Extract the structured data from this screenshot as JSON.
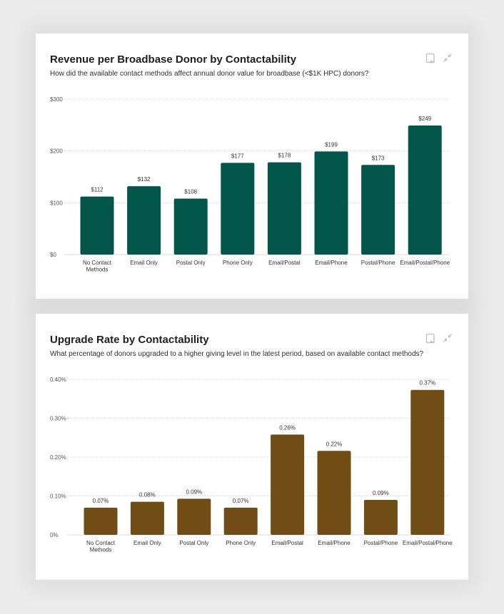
{
  "cards": [
    {
      "title": "Revenue per Broadbase Donor by Contactability",
      "subtitle": "How did the available contact methods affect annual donor value for broadbase (<$1K HPC) donors?",
      "icons": [
        "bookmark-add-icon",
        "collapse-icon"
      ]
    },
    {
      "title": "Upgrade Rate by Contactability",
      "subtitle": "What percentage of donors upgraded to a higher giving level in the latest period, based on available contact methods?",
      "icons": [
        "bookmark-add-icon",
        "collapse-icon"
      ]
    }
  ],
  "chart_data": [
    {
      "type": "bar",
      "title": "Revenue per Broadbase Donor by Contactability",
      "categories": [
        "No Contact Methods",
        "Email Only",
        "Postal Only",
        "Phone Only",
        "Email/Postal",
        "Email/Phone",
        "Postal/Phone",
        "Email/Postal/Phone"
      ],
      "category_lines": [
        [
          "No Contact",
          "Methods"
        ],
        [
          "Email Only"
        ],
        [
          "Postal Only"
        ],
        [
          "Phone Only"
        ],
        [
          "Email/Postal"
        ],
        [
          "Email/Phone"
        ],
        [
          "Postal/Phone"
        ],
        [
          "Email/Postal/Phone"
        ]
      ],
      "values": [
        112,
        132,
        108,
        177,
        178,
        199,
        173,
        249
      ],
      "value_labels": [
        "$112",
        "$132",
        "$108",
        "$177",
        "$178",
        "$199",
        "$173",
        "$249"
      ],
      "yticks": [
        0,
        100,
        200,
        300
      ],
      "ytick_labels": [
        "$0",
        "$100",
        "$200",
        "$300"
      ],
      "ylim": [
        0,
        300
      ],
      "xlabel": "",
      "ylabel": "",
      "grid": true,
      "color": "#02574a"
    },
    {
      "type": "bar",
      "title": "Upgrade Rate by Contactability",
      "categories": [
        "No Contact Methods",
        "Email Only",
        "Postal Only",
        "Phone Only",
        "Email/Postal",
        "Email/Phone",
        "Postal/Phone",
        "Email/Postal/Phone"
      ],
      "category_lines": [
        [
          "No Contact",
          "Methods"
        ],
        [
          "Email Only"
        ],
        [
          "Postal Only"
        ],
        [
          "Phone Only"
        ],
        [
          "Email/Postal"
        ],
        [
          "Email/Phone"
        ],
        [
          "Postal/Phone"
        ],
        [
          "Email/Postal/Phone"
        ]
      ],
      "values": [
        0.07,
        0.085,
        0.093,
        0.07,
        0.258,
        0.216,
        0.09,
        0.373
      ],
      "value_labels": [
        "0.07%",
        "0.08%",
        "0.09%",
        "0.07%",
        "0.26%",
        "0.22%",
        "0.09%",
        "0.37%"
      ],
      "yticks": [
        0,
        0.1,
        0.2,
        0.3,
        0.4
      ],
      "ytick_labels": [
        "0%",
        "0.10%",
        "0.20%",
        "0.30%",
        "0.40%"
      ],
      "ylim": [
        0,
        0.4
      ],
      "xlabel": "",
      "ylabel": "",
      "grid": true,
      "color": "#6f4d15"
    }
  ]
}
